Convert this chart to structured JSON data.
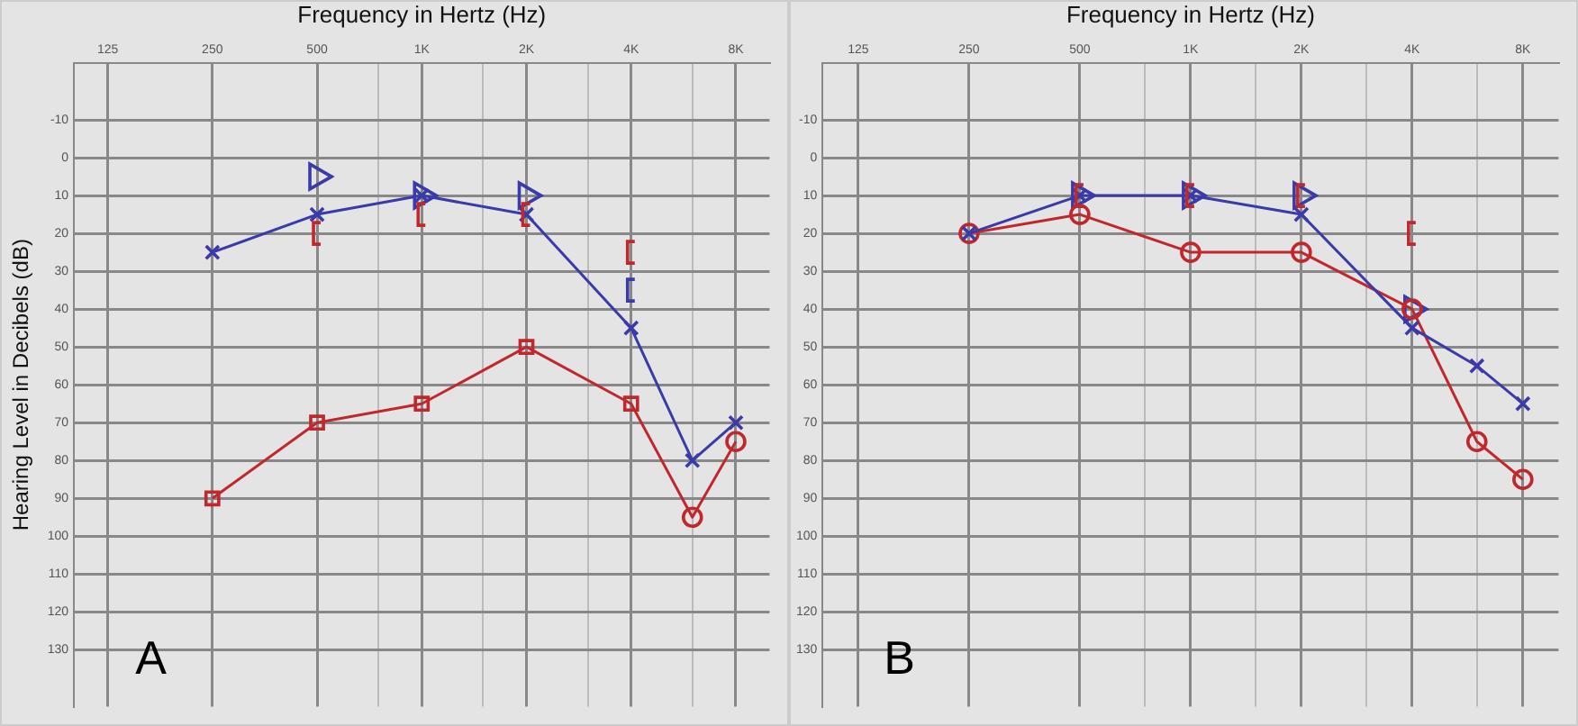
{
  "chart_data": [
    {
      "type": "line",
      "xlabel": "Frequency in Hertz (Hz)",
      "ylabel": "Hearing Level in Decibels (dB)",
      "log": "x",
      "grid": true,
      "xlim": [
        100,
        10000
      ],
      "ylim": [
        145,
        -25
      ],
      "xticks": [
        125,
        250,
        500,
        {
          "value": 750,
          "label": null
        },
        {
          "value": 1000,
          "label": "1K"
        },
        {
          "value": 1500,
          "label": null
        },
        {
          "value": 2000,
          "label": "2K"
        },
        {
          "value": 3000,
          "label": null
        },
        {
          "value": 4000,
          "label": "4K"
        },
        {
          "value": 6000,
          "label": null
        },
        {
          "value": 8000,
          "label": "8K"
        }
      ],
      "yticks": [
        -10,
        0,
        10,
        20,
        30,
        40,
        50,
        60,
        70,
        80,
        90,
        100,
        110,
        120,
        130
      ],
      "annotations": [
        "A"
      ],
      "series": [
        {
          "type": "line",
          "color": "#3a3aa8",
          "marker": "cross",
          "x": [
            250,
            500,
            1000,
            2000,
            4000,
            6000,
            8000
          ],
          "values": [
            25,
            15,
            10,
            15,
            45,
            80,
            70
          ]
        },
        {
          "type": "line",
          "color": "#c0282d",
          "marker": [
            "square",
            "square",
            "square",
            "square",
            "square",
            "circle",
            "circle"
          ],
          "x": [
            250,
            500,
            1000,
            2000,
            4000,
            6000,
            8000
          ],
          "values": [
            90,
            70,
            65,
            50,
            65,
            95,
            75
          ]
        },
        {
          "type": "scatter",
          "color": "#3a3aa8",
          "marker": "triangle",
          "x": [
            500,
            1000,
            2000
          ],
          "values": [
            5,
            10,
            10
          ]
        },
        {
          "type": "scatter",
          "color": "#c0282d",
          "x": [
            500,
            1000,
            2000,
            4000
          ],
          "values": [
            20,
            15,
            15,
            25
          ]
        },
        {
          "type": "scatter",
          "color": "#3a3aa8",
          "x": [
            4000
          ],
          "values": [
            35
          ]
        }
      ]
    },
    {
      "type": "line",
      "xlabel": "Frequency in Hertz (Hz)",
      "log": "x",
      "grid": true,
      "xlim": [
        100,
        10000
      ],
      "ylim": [
        145,
        -25
      ],
      "xticks": [
        125,
        250,
        500,
        {
          "value": 750,
          "label": null
        },
        {
          "value": 1000,
          "label": "1K"
        },
        {
          "value": 1500,
          "label": null
        },
        {
          "value": 2000,
          "label": "2K"
        },
        {
          "value": 3000,
          "label": null
        },
        {
          "value": 4000,
          "label": "4K"
        },
        {
          "value": 6000,
          "label": null
        },
        {
          "value": 8000,
          "label": "8K"
        }
      ],
      "yticks": [
        -10,
        0,
        10,
        20,
        30,
        40,
        50,
        60,
        70,
        80,
        90,
        100,
        110,
        120,
        130
      ],
      "annotations": [
        "B"
      ],
      "series": [
        {
          "type": "line",
          "color": "#3a3aa8",
          "marker": "cross",
          "x": [
            250,
            500,
            1000,
            2000,
            4000,
            6000,
            8000
          ],
          "values": [
            20,
            10,
            10,
            15,
            45,
            55,
            65
          ]
        },
        {
          "type": "line",
          "color": "#c0282d",
          "marker": "circle",
          "x": [
            250,
            500,
            1000,
            2000,
            4000,
            6000,
            8000
          ],
          "values": [
            20,
            15,
            25,
            25,
            40,
            75,
            85
          ]
        },
        {
          "type": "scatter",
          "color": "#3a3aa8",
          "marker": "triangle",
          "x": [
            500,
            1000,
            2000,
            4000
          ],
          "values": [
            10,
            10,
            10,
            40
          ]
        },
        {
          "type": "scatter",
          "color": "#c0282d",
          "x": [
            500,
            1000,
            2000,
            4000
          ],
          "values": [
            10,
            10,
            10,
            20
          ]
        }
      ]
    }
  ]
}
